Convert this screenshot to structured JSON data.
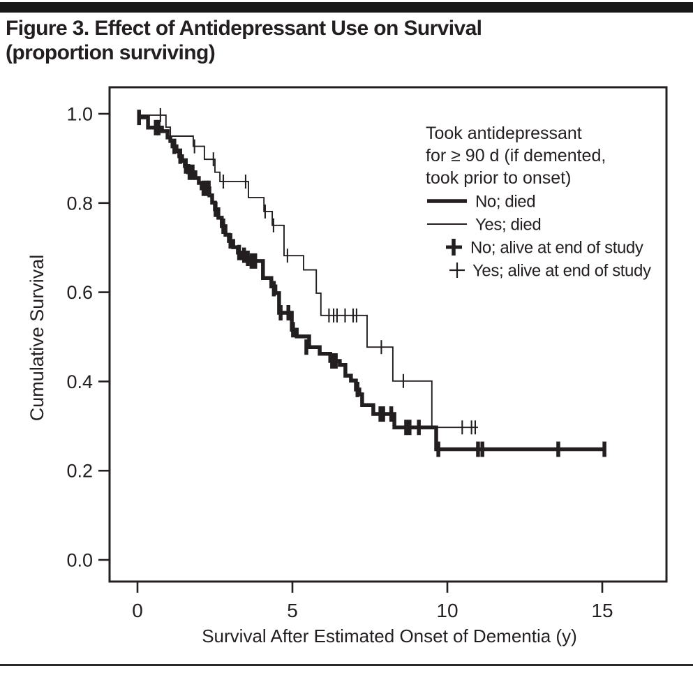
{
  "title": {
    "line1": "Figure 3. Effect of Antidepressant Use on Survival",
    "line2": "(proportion surviving)"
  },
  "colors": {
    "ink": "#231f20",
    "background": "#ffffff"
  },
  "chart_data": {
    "type": "line",
    "subtype": "kaplan-meier-step",
    "title": "Figure 3. Effect of Antidepressant Use on Survival (proportion surviving)",
    "xlabel": "Survival After Estimated Onset of Dementia (y)",
    "ylabel": "Cumulative Survival",
    "xlim": [
      -0.9,
      17.1
    ],
    "ylim": [
      -0.05,
      1.06
    ],
    "grid": false,
    "x_axis": {
      "ticks": [
        {
          "value": 0,
          "label": "0"
        },
        {
          "value": 5,
          "label": "5"
        },
        {
          "value": 10,
          "label": "10"
        },
        {
          "value": 15,
          "label": "15"
        }
      ]
    },
    "y_axis": {
      "ticks": [
        {
          "value": 1.0,
          "label": "1.0"
        },
        {
          "value": 0.8,
          "label": "0.8"
        },
        {
          "value": 0.6,
          "label": "0.6"
        },
        {
          "value": 0.4,
          "label": "0.4"
        },
        {
          "value": 0.2,
          "label": "0.2"
        },
        {
          "value": 0.0,
          "label": "0.0"
        }
      ]
    },
    "legend": {
      "position": "upper-right-inside",
      "heading_lines": [
        "Took antidepressant",
        "for ≥ 90 d (if demented,",
        "took prior to onset)"
      ],
      "entries": [
        {
          "label": "No; died",
          "swatch": "thick-line"
        },
        {
          "label": "Yes; died",
          "swatch": "thin-line"
        },
        {
          "label": "No; alive at end of study",
          "swatch": "thick-cross"
        },
        {
          "label": "Yes; alive at end of study",
          "swatch": "thin-cross"
        }
      ]
    },
    "series": [
      {
        "name": "No; died",
        "style": "thick",
        "points": [
          [
            0.02,
            0.992
          ],
          [
            0.34,
            0.969
          ],
          [
            0.79,
            0.961
          ],
          [
            0.97,
            0.947
          ],
          [
            1.06,
            0.939
          ],
          [
            1.13,
            0.927
          ],
          [
            1.26,
            0.916
          ],
          [
            1.35,
            0.905
          ],
          [
            1.44,
            0.894
          ],
          [
            1.53,
            0.883
          ],
          [
            1.64,
            0.869
          ],
          [
            1.87,
            0.856
          ],
          [
            1.98,
            0.845
          ],
          [
            2.07,
            0.833
          ],
          [
            2.32,
            0.817
          ],
          [
            2.41,
            0.801
          ],
          [
            2.5,
            0.786
          ],
          [
            2.61,
            0.767
          ],
          [
            2.72,
            0.748
          ],
          [
            2.84,
            0.729
          ],
          [
            2.95,
            0.715
          ],
          [
            3.09,
            0.701
          ],
          [
            3.24,
            0.689
          ],
          [
            3.38,
            0.676
          ],
          [
            3.65,
            0.67
          ],
          [
            4.05,
            0.632
          ],
          [
            4.32,
            0.613
          ],
          [
            4.45,
            0.598
          ],
          [
            4.57,
            0.554
          ],
          [
            4.98,
            0.516
          ],
          [
            5.14,
            0.501
          ],
          [
            5.54,
            0.477
          ],
          [
            5.88,
            0.462
          ],
          [
            6.22,
            0.446
          ],
          [
            6.53,
            0.437
          ],
          [
            6.71,
            0.413
          ],
          [
            6.89,
            0.402
          ],
          [
            7.05,
            0.382
          ],
          [
            7.16,
            0.371
          ],
          [
            7.25,
            0.347
          ],
          [
            7.61,
            0.327
          ],
          [
            8.29,
            0.297
          ],
          [
            9.64,
            0.248
          ],
          [
            15.1,
            0.248
          ]
        ],
        "censors": [
          [
            0.05,
            0.992
          ],
          [
            0.59,
            0.969
          ],
          [
            0.68,
            0.969
          ],
          [
            1.19,
            0.927
          ],
          [
            1.38,
            0.905
          ],
          [
            1.56,
            0.883
          ],
          [
            1.68,
            0.869
          ],
          [
            1.78,
            0.869
          ],
          [
            2.13,
            0.833
          ],
          [
            2.22,
            0.833
          ],
          [
            2.3,
            0.833
          ],
          [
            2.52,
            0.786
          ],
          [
            2.77,
            0.748
          ],
          [
            3.0,
            0.715
          ],
          [
            3.28,
            0.689
          ],
          [
            3.44,
            0.683
          ],
          [
            3.56,
            0.676
          ],
          [
            3.68,
            0.67
          ],
          [
            3.8,
            0.67
          ],
          [
            4.4,
            0.608
          ],
          [
            4.62,
            0.554
          ],
          [
            4.87,
            0.554
          ],
          [
            5.02,
            0.516
          ],
          [
            5.45,
            0.477
          ],
          [
            6.28,
            0.446
          ],
          [
            6.4,
            0.446
          ],
          [
            7.1,
            0.382
          ],
          [
            7.84,
            0.327
          ],
          [
            7.93,
            0.327
          ],
          [
            8.19,
            0.327
          ],
          [
            8.67,
            0.297
          ],
          [
            8.78,
            0.297
          ],
          [
            9.08,
            0.297
          ],
          [
            9.71,
            0.248
          ],
          [
            10.99,
            0.248
          ],
          [
            11.13,
            0.248
          ],
          [
            13.58,
            0.248
          ],
          [
            15.07,
            0.248
          ]
        ]
      },
      {
        "name": "Yes; died",
        "style": "thin",
        "points": [
          [
            0.02,
            0.997
          ],
          [
            0.92,
            0.97
          ],
          [
            1.06,
            0.95
          ],
          [
            1.8,
            0.927
          ],
          [
            2.16,
            0.898
          ],
          [
            2.5,
            0.869
          ],
          [
            2.66,
            0.848
          ],
          [
            3.58,
            0.812
          ],
          [
            4.08,
            0.781
          ],
          [
            4.35,
            0.75
          ],
          [
            4.73,
            0.682
          ],
          [
            5.36,
            0.65
          ],
          [
            5.77,
            0.598
          ],
          [
            5.92,
            0.548
          ],
          [
            7.41,
            0.477
          ],
          [
            8.24,
            0.401
          ],
          [
            9.5,
            0.297
          ],
          [
            10.99,
            0.297
          ]
        ],
        "censors": [
          [
            0.74,
            0.997
          ],
          [
            1.84,
            0.927
          ],
          [
            2.45,
            0.898
          ],
          [
            2.77,
            0.848
          ],
          [
            3.49,
            0.848
          ],
          [
            4.12,
            0.781
          ],
          [
            4.39,
            0.75
          ],
          [
            4.84,
            0.682
          ],
          [
            6.18,
            0.548
          ],
          [
            6.33,
            0.548
          ],
          [
            6.44,
            0.548
          ],
          [
            6.7,
            0.548
          ],
          [
            6.96,
            0.548
          ],
          [
            7.07,
            0.548
          ],
          [
            7.87,
            0.477
          ],
          [
            8.58,
            0.401
          ],
          [
            10.48,
            0.297
          ],
          [
            10.78,
            0.297
          ],
          [
            10.9,
            0.297
          ]
        ]
      }
    ]
  }
}
